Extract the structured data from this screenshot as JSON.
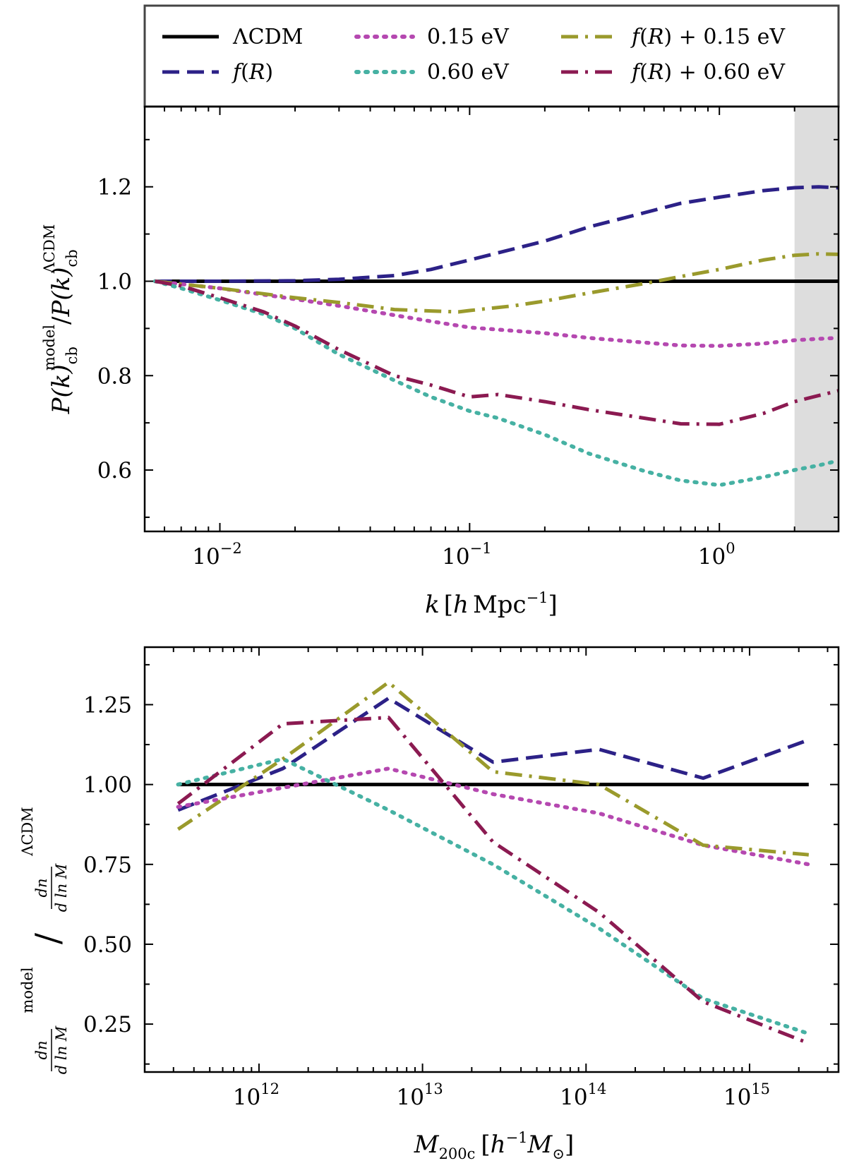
{
  "legend": {
    "entries": [
      {
        "key": "lcdm",
        "label": "ΛCDM",
        "color": "#000000",
        "dash": "solid"
      },
      {
        "key": "fr",
        "label": "f(R)",
        "color": "#2c2187",
        "dash": "dashed"
      },
      {
        "key": "nu015",
        "label": "0.15 eV",
        "color": "#b548b0",
        "dash": "dotted"
      },
      {
        "key": "nu060",
        "label": "0.60 eV",
        "color": "#46b1a3",
        "dash": "dotted"
      },
      {
        "key": "fr_nu015",
        "label": "f(R) + 0.15 eV",
        "color": "#9a9a2c",
        "dash": "dashdot"
      },
      {
        "key": "fr_nu060",
        "label": "f(R) + 0.60 eV",
        "color": "#8b1a51",
        "dash": "dashdot"
      }
    ]
  },
  "chart_data": [
    {
      "type": "line",
      "name": "power-spectrum-ratio",
      "xscale": "log",
      "xlim": [
        0.005,
        3.0
      ],
      "ylim": [
        0.47,
        1.37
      ],
      "xlabel": "k [h Mpc^-1]",
      "ylabel": "P(k)_cb^model / P(k)_cb^ΛCDM",
      "xlabel_parts": {
        "var": "k",
        "bracket_open": "[",
        "h": "h",
        "unit": "Mpc",
        "exp": "−1",
        "bracket_close": "]"
      },
      "ylabel_parts": {
        "numer": "P(k)",
        "numer_sub": "cb",
        "numer_sup": "model",
        "slash": "/",
        "denom": "P(k)",
        "denom_sub": "cb",
        "denom_sup": "ΛCDM"
      },
      "xticks": [
        {
          "value": 0.01,
          "base": "10",
          "exp": "−2"
        },
        {
          "value": 0.1,
          "base": "10",
          "exp": "−1"
        },
        {
          "value": 1.0,
          "base": "10",
          "exp": "0"
        }
      ],
      "yticks": [
        {
          "value": 0.6,
          "label": "0.6"
        },
        {
          "value": 0.8,
          "label": "0.8"
        },
        {
          "value": 1.0,
          "label": "1.0"
        },
        {
          "value": 1.2,
          "label": "1.2"
        }
      ],
      "shaded_x_range": [
        2.0,
        3.0
      ],
      "series": [
        {
          "key": "lcdm",
          "x": [
            0.0055,
            3.0
          ],
          "y": [
            1.0,
            1.0
          ]
        },
        {
          "key": "fr",
          "x": [
            0.0055,
            0.01,
            0.02,
            0.03,
            0.05,
            0.07,
            0.1,
            0.2,
            0.3,
            0.5,
            0.7,
            1.0,
            1.5,
            2.0,
            2.5,
            3.0
          ],
          "y": [
            1.0,
            1.0,
            1.001,
            1.004,
            1.012,
            1.025,
            1.045,
            1.085,
            1.115,
            1.145,
            1.165,
            1.178,
            1.192,
            1.198,
            1.2,
            1.198
          ]
        },
        {
          "key": "nu015",
          "x": [
            0.0055,
            0.01,
            0.02,
            0.03,
            0.05,
            0.07,
            0.1,
            0.2,
            0.3,
            0.5,
            0.7,
            1.0,
            1.5,
            2.0,
            2.5,
            3.0
          ],
          "y": [
            1.0,
            0.985,
            0.962,
            0.948,
            0.928,
            0.915,
            0.902,
            0.89,
            0.88,
            0.87,
            0.864,
            0.863,
            0.868,
            0.875,
            0.878,
            0.88
          ]
        },
        {
          "key": "nu060",
          "x": [
            0.0055,
            0.007,
            0.01,
            0.015,
            0.02,
            0.03,
            0.05,
            0.07,
            0.1,
            0.13,
            0.2,
            0.3,
            0.5,
            0.7,
            1.0,
            1.5,
            2.0,
            2.5,
            3.0
          ],
          "y": [
            1.0,
            0.985,
            0.96,
            0.93,
            0.9,
            0.845,
            0.79,
            0.755,
            0.725,
            0.71,
            0.675,
            0.635,
            0.598,
            0.578,
            0.568,
            0.585,
            0.6,
            0.61,
            0.62
          ]
        },
        {
          "key": "fr_nu015",
          "x": [
            0.0055,
            0.01,
            0.02,
            0.03,
            0.05,
            0.07,
            0.09,
            0.1,
            0.15,
            0.2,
            0.3,
            0.5,
            0.7,
            1.0,
            1.5,
            2.0,
            2.5,
            3.0
          ],
          "y": [
            1.0,
            0.985,
            0.965,
            0.955,
            0.94,
            0.937,
            0.935,
            0.938,
            0.948,
            0.958,
            0.975,
            0.995,
            1.01,
            1.025,
            1.045,
            1.055,
            1.058,
            1.057
          ]
        },
        {
          "key": "fr_nu060",
          "x": [
            0.0055,
            0.007,
            0.01,
            0.015,
            0.02,
            0.03,
            0.05,
            0.07,
            0.1,
            0.13,
            0.2,
            0.3,
            0.5,
            0.7,
            1.0,
            1.5,
            2.0,
            2.5,
            3.0
          ],
          "y": [
            1.0,
            0.99,
            0.965,
            0.935,
            0.905,
            0.855,
            0.8,
            0.78,
            0.755,
            0.76,
            0.745,
            0.728,
            0.71,
            0.698,
            0.697,
            0.72,
            0.745,
            0.758,
            0.768
          ]
        }
      ]
    },
    {
      "type": "line",
      "name": "halo-mass-function-ratio",
      "xscale": "log",
      "xlim": [
        200000000000.0,
        3500000000000000.0
      ],
      "ylim": [
        0.1,
        1.43
      ],
      "xlabel": "M_200c [h^-1 M_⊙]",
      "ylabel": "(dn/d ln M)^model / (dn/d ln M)^ΛCDM",
      "xlabel_parts": {
        "var": "M",
        "sub": "200c",
        "bracket_open": "[",
        "h": "h",
        "exp": "−1",
        "m": "M",
        "msun": "⊙",
        "bracket_close": "]"
      },
      "ylabel_parts": {
        "dn": "dn",
        "dlnm": "d ln M",
        "sup_model": "model",
        "slash": "/",
        "sup_lcdm": "ΛCDM"
      },
      "xticks": [
        {
          "value": 1000000000000.0,
          "base": "10",
          "exp": "12"
        },
        {
          "value": 10000000000000.0,
          "base": "10",
          "exp": "13"
        },
        {
          "value": 100000000000000.0,
          "base": "10",
          "exp": "14"
        },
        {
          "value": 1000000000000000.0,
          "base": "10",
          "exp": "15"
        }
      ],
      "yticks": [
        {
          "value": 0.25,
          "label": "0.25"
        },
        {
          "value": 0.5,
          "label": "0.50"
        },
        {
          "value": 0.75,
          "label": "0.75"
        },
        {
          "value": 1.0,
          "label": "1.00"
        },
        {
          "value": 1.25,
          "label": "1.25"
        }
      ],
      "series": [
        {
          "key": "lcdm",
          "x": [
            320000000000.0,
            2300000000000000.0
          ],
          "y": [
            1.0,
            1.0
          ]
        },
        {
          "key": "fr",
          "x": [
            320000000000.0,
            1400000000000.0,
            6200000000000.0,
            27000000000000.0,
            120000000000000.0,
            520000000000000.0,
            2300000000000000.0
          ],
          "y": [
            0.92,
            1.05,
            1.27,
            1.07,
            1.11,
            1.02,
            1.14
          ]
        },
        {
          "key": "nu015",
          "x": [
            320000000000.0,
            1400000000000.0,
            6200000000000.0,
            27000000000000.0,
            120000000000000.0,
            520000000000000.0,
            2300000000000000.0
          ],
          "y": [
            0.93,
            0.99,
            1.05,
            0.97,
            0.91,
            0.81,
            0.75
          ]
        },
        {
          "key": "nu060",
          "x": [
            320000000000.0,
            1400000000000.0,
            6200000000000.0,
            27000000000000.0,
            120000000000000.0,
            520000000000000.0,
            2300000000000000.0
          ],
          "y": [
            1.0,
            1.08,
            0.92,
            0.75,
            0.55,
            0.33,
            0.22
          ]
        },
        {
          "key": "fr_nu015",
          "x": [
            320000000000.0,
            1400000000000.0,
            6200000000000.0,
            27000000000000.0,
            120000000000000.0,
            520000000000000.0,
            2300000000000000.0
          ],
          "y": [
            0.86,
            1.08,
            1.32,
            1.04,
            1.0,
            0.81,
            0.78
          ]
        },
        {
          "key": "fr_nu060",
          "x": [
            320000000000.0,
            1400000000000.0,
            6200000000000.0,
            27000000000000.0,
            120000000000000.0,
            520000000000000.0,
            2300000000000000.0
          ],
          "y": [
            0.94,
            1.19,
            1.21,
            0.82,
            0.6,
            0.32,
            0.19
          ]
        }
      ]
    }
  ]
}
